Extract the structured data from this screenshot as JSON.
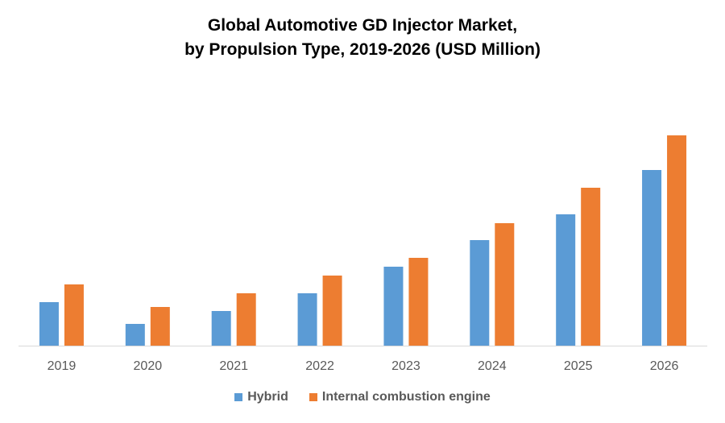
{
  "chart_data": {
    "type": "bar",
    "title_lines": [
      "Global Automotive GD Injector Market,",
      "by Propulsion Type, 2019-2026 (USD Million)"
    ],
    "xlabel": "",
    "ylabel": "",
    "categories": [
      "2019",
      "2020",
      "2021",
      "2022",
      "2023",
      "2024",
      "2025",
      "2026"
    ],
    "series": [
      {
        "name": "Hybrid",
        "color": "#5b9bd5",
        "values": [
          54,
          27,
          43,
          65,
          98,
          131,
          163,
          218
        ]
      },
      {
        "name": "Internal combustion engine",
        "color": "#ed7d31",
        "values": [
          76,
          48,
          65,
          87,
          109,
          152,
          196,
          261
        ]
      }
    ],
    "ylim": [
      0,
      300
    ],
    "value_note": "relative units; no y-axis scale shown",
    "grid": false,
    "legend_position": "bottom"
  }
}
